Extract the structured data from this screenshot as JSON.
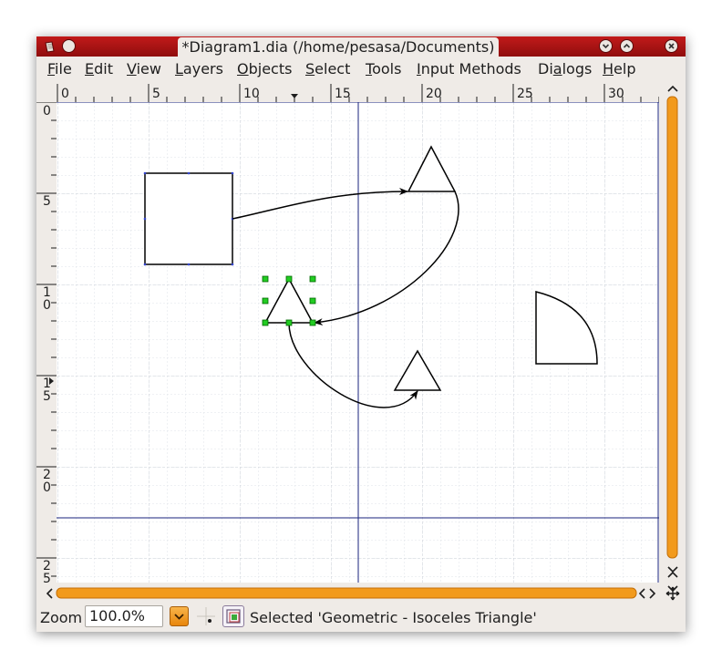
{
  "window": {
    "title": "*Diagram1.dia (/home/pesasa/Documents)"
  },
  "menu": [
    {
      "label": "File",
      "u": "F",
      "rest": "ile"
    },
    {
      "label": "Edit",
      "u": "E",
      "rest": "dit"
    },
    {
      "label": "View",
      "u": "V",
      "rest": "iew"
    },
    {
      "label": "Layers",
      "u": "L",
      "rest": "ayers"
    },
    {
      "label": "Objects",
      "u": "O",
      "rest": "bjects"
    },
    {
      "label": "Select",
      "u": "S",
      "rest": "elect"
    },
    {
      "label": "Tools",
      "u": "T",
      "rest": "ools"
    },
    {
      "label": "Input Methods",
      "u": "I",
      "rest": "nput Methods"
    },
    {
      "label": "Dialogs",
      "u": "D",
      "pre": "Di",
      "rest2": "alogs"
    },
    {
      "label": "Help",
      "u": "H",
      "rest": "elp"
    }
  ],
  "ruler": {
    "top_labels": [
      "0",
      "5",
      "10",
      "15",
      "20",
      "25",
      "30"
    ],
    "left_labels": [
      [
        "0"
      ],
      [
        "5"
      ],
      [
        "1",
        "0"
      ],
      [
        "1",
        "5"
      ],
      [
        "2",
        "0"
      ],
      [
        "2",
        "5"
      ]
    ]
  },
  "statusbar": {
    "zoom_label": "Zoom",
    "zoom_value": "100.0%",
    "status_text": "Selected 'Geometric - Isoceles Triangle'"
  },
  "colors": {
    "titlebar": "#a01212",
    "scrollbar_accent": "#f29a1c",
    "selection_handle": "#22cc22",
    "guide_line": "#1a237e",
    "grid": "#d6dbe2"
  },
  "icons": {
    "window_menu": "document-icon",
    "minimize": "minimize-icon",
    "maximize": "maximize-icon",
    "close": "close-icon"
  }
}
